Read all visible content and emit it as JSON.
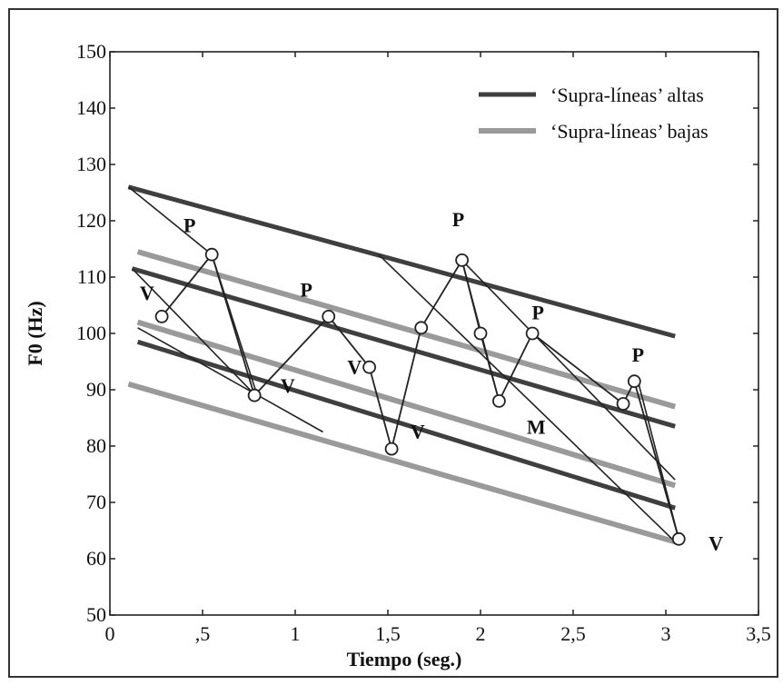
{
  "chart_data": {
    "type": "line",
    "xlabel": "Tiempo (seg.)",
    "ylabel": "F0 (Hz)",
    "xlim": [
      0,
      3.5
    ],
    "ylim": [
      50,
      150
    ],
    "x_ticks": [
      0,
      0.5,
      1,
      1.5,
      2,
      2.5,
      3,
      3.5
    ],
    "x_tick_labels": [
      "0",
      ",5",
      "1",
      "1,5",
      "2",
      "2,5",
      "3",
      "3,5"
    ],
    "y_ticks": [
      50,
      60,
      70,
      80,
      90,
      100,
      110,
      120,
      130,
      140,
      150
    ],
    "y_tick_labels": [
      "50",
      "60",
      "70",
      "80",
      "90",
      "100",
      "110",
      "120",
      "130",
      "140",
      "150"
    ],
    "grid": false,
    "legend_position": "top-right",
    "legend": [
      {
        "label": "‘Supra-líneas’ altas",
        "color": "#3f3f3f"
      },
      {
        "label": "‘Supra-líneas’ bajas",
        "color": "#9a9a9a"
      }
    ],
    "supra_lines_altas": [
      {
        "x": [
          0.1,
          3.05
        ],
        "y": [
          126,
          99.5
        ]
      },
      {
        "x": [
          0.12,
          3.05
        ],
        "y": [
          111.5,
          83.5
        ]
      },
      {
        "x": [
          0.15,
          3.05
        ],
        "y": [
          98.5,
          69
        ]
      }
    ],
    "supra_lines_bajas": [
      {
        "x": [
          0.15,
          3.05
        ],
        "y": [
          114.5,
          87
        ]
      },
      {
        "x": [
          0.15,
          3.05
        ],
        "y": [
          102,
          73
        ]
      },
      {
        "x": [
          0.1,
          3.05
        ],
        "y": [
          91,
          63
        ]
      }
    ],
    "contour": {
      "x": [
        0.28,
        0.55,
        0.78,
        1.18,
        1.4,
        1.52,
        1.68,
        1.9,
        2.0,
        2.1,
        2.28,
        2.77,
        2.83,
        3.07
      ],
      "y": [
        103,
        114,
        89,
        103,
        94,
        79.5,
        101,
        113,
        100,
        88,
        100,
        87.5,
        91.5,
        63.5
      ]
    },
    "connector_lines": [
      {
        "x": [
          0.1,
          0.55
        ],
        "y": [
          126,
          114
        ]
      },
      {
        "x": [
          0.55,
          0.8
        ],
        "y": [
          114,
          88.5
        ]
      },
      {
        "x": [
          0.12,
          0.8
        ],
        "y": [
          111.5,
          88.5
        ]
      },
      {
        "x": [
          0.15,
          1.15
        ],
        "y": [
          101,
          82.5
        ]
      },
      {
        "x": [
          1.9,
          2.1
        ],
        "y": [
          113,
          88
        ]
      },
      {
        "x": [
          1.9,
          3.05
        ],
        "y": [
          113,
          74
        ]
      },
      {
        "x": [
          1.45,
          3.05
        ],
        "y": [
          114,
          63
        ]
      },
      {
        "x": [
          2.85,
          3.07
        ],
        "y": [
          91.5,
          63.5
        ]
      }
    ],
    "annotations": [
      {
        "text": "V",
        "x": 0.2,
        "y": 106
      },
      {
        "text": "P",
        "x": 0.43,
        "y": 118
      },
      {
        "text": "P",
        "x": 1.06,
        "y": 106.5
      },
      {
        "text": "V",
        "x": 0.96,
        "y": 89.5
      },
      {
        "text": "V",
        "x": 1.32,
        "y": 92.8
      },
      {
        "text": "V",
        "x": 1.66,
        "y": 81.4
      },
      {
        "text": "P",
        "x": 1.88,
        "y": 119
      },
      {
        "text": "P",
        "x": 2.31,
        "y": 102.5
      },
      {
        "text": "P",
        "x": 2.85,
        "y": 95
      },
      {
        "text": "M",
        "x": 2.3,
        "y": 82.2
      },
      {
        "text": "V",
        "x": 3.27,
        "y": 61.5
      }
    ]
  }
}
